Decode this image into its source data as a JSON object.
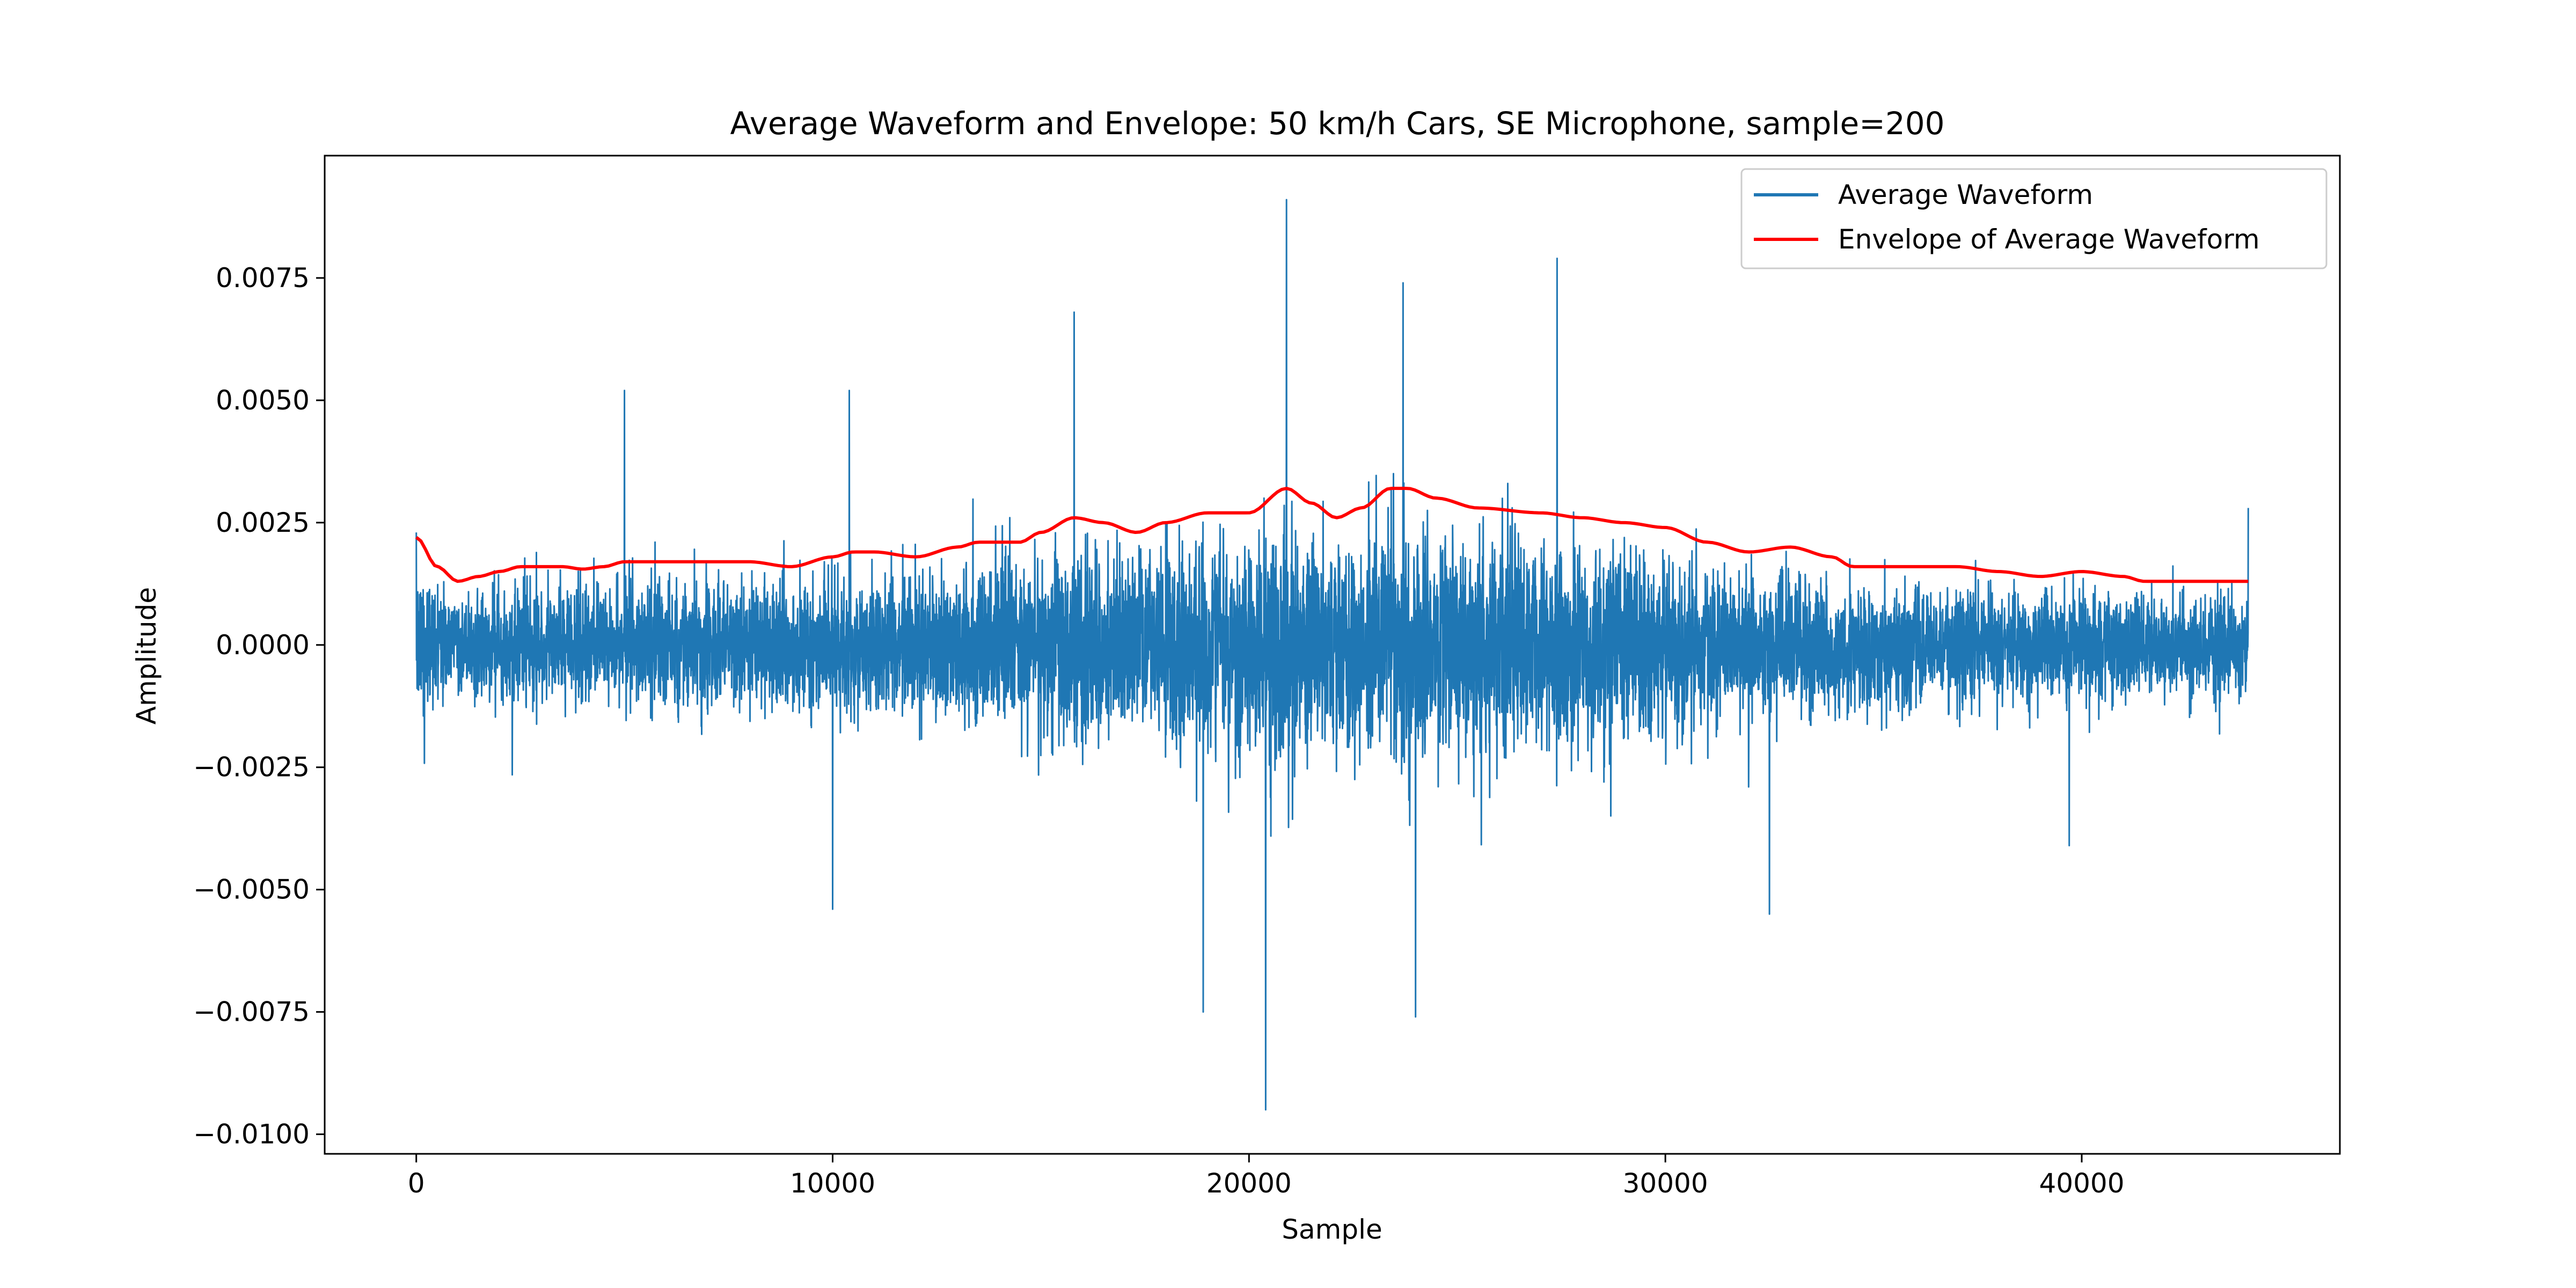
{
  "chart_data": {
    "type": "line",
    "title": "Average Waveform and Envelope: 50 km/h Cars, SE Microphone, sample=200",
    "xlabel": "Sample",
    "ylabel": "Amplitude",
    "xlim": [
      -2200,
      46200
    ],
    "ylim": [
      -0.0104,
      0.01
    ],
    "x_ticks": [
      0,
      10000,
      20000,
      30000,
      40000
    ],
    "x_tick_labels": [
      "0",
      "10000",
      "20000",
      "30000",
      "40000"
    ],
    "y_ticks": [
      0.0075,
      0.005,
      0.0025,
      0.0,
      -0.0025,
      -0.005,
      -0.0075,
      -0.01
    ],
    "y_tick_labels": [
      "0.0075",
      "0.0050",
      "0.0025",
      "0.0000",
      "−0.0025",
      "−0.0050",
      "−0.0075",
      "−0.0100"
    ],
    "grid": false,
    "legend_position": "top-right",
    "series": [
      {
        "name": "Average Waveform",
        "color": "#1f77b4",
        "x_range": [
          0,
          44000
        ],
        "description_points": [
          {
            "x": 0,
            "y": 0.0023
          },
          {
            "x": 5000,
            "y": 0.0052
          },
          {
            "x": 10400,
            "y": 0.0052
          },
          {
            "x": 10000,
            "y": -0.0054
          },
          {
            "x": 15800,
            "y": 0.0068
          },
          {
            "x": 18900,
            "y": -0.0075
          },
          {
            "x": 20900,
            "y": 0.0091
          },
          {
            "x": 20400,
            "y": -0.0095
          },
          {
            "x": 23700,
            "y": 0.0074
          },
          {
            "x": 24000,
            "y": -0.0076
          },
          {
            "x": 27400,
            "y": 0.0079
          },
          {
            "x": 32500,
            "y": -0.0055
          },
          {
            "x": 39700,
            "y": -0.0041
          },
          {
            "x": 44000,
            "y": 0.0028
          }
        ]
      },
      {
        "name": "Envelope of Average Waveform",
        "color": "#ff0000",
        "x": [
          0,
          500,
          1000,
          1500,
          2000,
          2500,
          3000,
          3500,
          4000,
          4500,
          5000,
          6000,
          7000,
          8000,
          9000,
          10000,
          10500,
          11000,
          12000,
          13000,
          13500,
          14500,
          15000,
          15800,
          16500,
          17300,
          18000,
          19000,
          20000,
          20900,
          21500,
          22100,
          22700,
          23400,
          23800,
          24500,
          25500,
          27000,
          28000,
          29000,
          30000,
          31000,
          32000,
          33000,
          34000,
          34500,
          35500,
          37000,
          38000,
          39000,
          40000,
          41000,
          41500,
          42500,
          44000
        ],
        "y": [
          0.0022,
          0.0016,
          0.0013,
          0.0014,
          0.0015,
          0.0016,
          0.0016,
          0.0016,
          0.00155,
          0.0016,
          0.0017,
          0.0017,
          0.0017,
          0.0017,
          0.0016,
          0.0018,
          0.0019,
          0.0019,
          0.0018,
          0.002,
          0.0021,
          0.0021,
          0.0023,
          0.0026,
          0.0025,
          0.0023,
          0.0025,
          0.0027,
          0.0027,
          0.0032,
          0.0029,
          0.0026,
          0.0028,
          0.0032,
          0.0032,
          0.003,
          0.0028,
          0.0027,
          0.0026,
          0.0025,
          0.0024,
          0.0021,
          0.0019,
          0.002,
          0.0018,
          0.0016,
          0.0016,
          0.0016,
          0.0015,
          0.0014,
          0.0015,
          0.0014,
          0.0013,
          0.0013,
          0.0013
        ]
      }
    ]
  }
}
